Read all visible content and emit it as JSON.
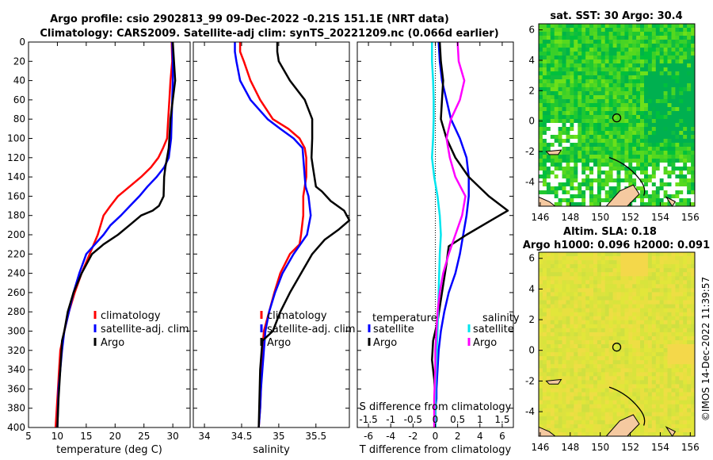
{
  "header": {
    "title1": "Argo profile: csio 2902813_99 09-Dec-2022 -0.21S 151.1E (NRT data)",
    "title2": "Climatology: CARS2009. Satellite-adj clim: synTS_20221209.nc (0.066d earlier)"
  },
  "colors": {
    "climatology": "#ff0000",
    "satellite": "#0000ff",
    "argo": "#000000",
    "temp_diff": "#00e5ee",
    "sal_diff": "#ff00ff"
  },
  "chart_data": [
    {
      "type": "line",
      "name": "temperature",
      "xlabel": "temperature (deg C)",
      "xlim": [
        5,
        33
      ],
      "ylim": [
        0,
        400
      ],
      "xticks": [
        5,
        10,
        15,
        20,
        25,
        30
      ],
      "xtick_labels": [
        "5",
        "10",
        "15",
        "20",
        "25",
        "30"
      ],
      "yticks": [
        0,
        20,
        40,
        60,
        80,
        100,
        120,
        140,
        160,
        180,
        200,
        220,
        240,
        260,
        280,
        300,
        320,
        340,
        360,
        380,
        400
      ],
      "ytick_labels": [
        "0",
        "20",
        "40",
        "60",
        "80",
        "100",
        "120",
        "140",
        "160",
        "180",
        "200",
        "220",
        "240",
        "260",
        "280",
        "300",
        "320",
        "340",
        "360",
        "380",
        "400"
      ],
      "legend": [
        "climatology",
        "satellite-adj. clim",
        "Argo"
      ],
      "series": [
        {
          "name": "climatology",
          "color": "#ff0000",
          "x": [
            29.8,
            29.9,
            29.6,
            29.4,
            29.2,
            29.0,
            28.3,
            27.5,
            26.2,
            24.5,
            22.5,
            20.5,
            19.2,
            18.0,
            17.0,
            15.6,
            14.2,
            13.0,
            12.0,
            11.2,
            10.5,
            10.3,
            10.1,
            9.9,
            9.7
          ],
          "y": [
            0,
            20,
            40,
            60,
            80,
            100,
            110,
            120,
            130,
            140,
            150,
            160,
            170,
            180,
            200,
            220,
            240,
            260,
            280,
            300,
            320,
            340,
            360,
            380,
            400
          ]
        },
        {
          "name": "satellite-adj. clim",
          "color": "#0000ff",
          "x": [
            29.9,
            30.0,
            30.0,
            29.9,
            29.8,
            29.7,
            29.3,
            28.5,
            27.2,
            25.6,
            24.2,
            22.6,
            21.0,
            19.2,
            18.0,
            16.5,
            15.0,
            13.8,
            12.8,
            12.0,
            11.2,
            10.8,
            10.5,
            10.2,
            10.0
          ],
          "y": [
            0,
            20,
            40,
            60,
            80,
            100,
            120,
            130,
            140,
            150,
            160,
            170,
            180,
            190,
            200,
            210,
            220,
            240,
            260,
            280,
            300,
            320,
            340,
            360,
            400
          ]
        },
        {
          "name": "Argo",
          "color": "#000000",
          "x": [
            30.0,
            30.2,
            30.4,
            30.0,
            29.6,
            29.4,
            29.3,
            29.0,
            28.7,
            28.5,
            28.4,
            27.6,
            26.5,
            24.5,
            22.5,
            20.5,
            18.0,
            16.0,
            14.2,
            12.8,
            11.8,
            11.2,
            10.8,
            10.5,
            10.2,
            10.0
          ],
          "y": [
            0,
            20,
            40,
            60,
            80,
            100,
            110,
            120,
            130,
            140,
            160,
            170,
            175,
            180,
            190,
            200,
            210,
            220,
            240,
            260,
            280,
            300,
            310,
            340,
            370,
            400
          ]
        }
      ]
    },
    {
      "type": "line",
      "name": "salinity",
      "xlabel": "salinity",
      "xlim": [
        33.85,
        35.95
      ],
      "ylim": [
        0,
        400
      ],
      "xticks": [
        34,
        34.5,
        35,
        35.5
      ],
      "xtick_labels": [
        "34",
        "34.5",
        "35",
        "35.5"
      ],
      "legend": [
        "climatology",
        "satellite-adj. clim",
        "Argo"
      ],
      "series": [
        {
          "name": "climatology",
          "color": "#ff0000",
          "x": [
            34.48,
            34.48,
            34.53,
            34.62,
            34.75,
            34.92,
            35.13,
            35.28,
            35.35,
            35.37,
            35.37,
            35.33,
            35.33,
            35.3,
            35.28,
            35.15,
            35.02,
            34.94,
            34.87,
            34.8,
            34.78,
            34.77,
            34.76,
            34.75,
            34.73
          ],
          "y": [
            0,
            10,
            20,
            40,
            60,
            80,
            90,
            100,
            110,
            120,
            140,
            160,
            180,
            200,
            210,
            220,
            240,
            260,
            280,
            300,
            320,
            340,
            360,
            380,
            400
          ]
        },
        {
          "name": "satellite-adj. clim",
          "color": "#0000ff",
          "x": [
            34.41,
            34.41,
            34.43,
            34.48,
            34.62,
            34.85,
            35.02,
            35.2,
            35.32,
            35.33,
            35.35,
            35.36,
            35.4,
            35.43,
            35.38,
            35.2,
            35.05,
            34.95,
            34.87,
            34.82,
            34.8,
            34.78,
            34.76,
            34.75,
            34.73
          ],
          "y": [
            0,
            10,
            20,
            40,
            60,
            80,
            90,
            100,
            110,
            120,
            140,
            150,
            160,
            180,
            200,
            220,
            240,
            260,
            280,
            300,
            320,
            340,
            360,
            380,
            400
          ]
        },
        {
          "name": "Argo",
          "color": "#000000",
          "x": [
            34.98,
            34.98,
            35.0,
            35.15,
            35.35,
            35.45,
            35.45,
            35.44,
            35.46,
            35.48,
            35.5,
            35.58,
            35.7,
            35.88,
            35.95,
            35.8,
            35.62,
            35.45,
            35.3,
            35.15,
            35.02,
            34.92,
            34.78,
            34.75,
            34.74,
            34.73
          ],
          "y": [
            0,
            10,
            20,
            40,
            60,
            80,
            100,
            120,
            130,
            140,
            150,
            155,
            165,
            175,
            185,
            195,
            205,
            220,
            240,
            260,
            280,
            300,
            310,
            340,
            370,
            400
          ]
        }
      ]
    },
    {
      "type": "line",
      "name": "difference",
      "xlabel": "T difference from climatology",
      "xlabel_top": "S difference from climatology",
      "xlim": [
        -7,
        7
      ],
      "ylim": [
        0,
        400
      ],
      "xticks": [
        -6,
        -4,
        -2,
        0,
        2,
        4,
        6
      ],
      "xtick_labels": [
        "-6",
        "-4",
        "-2",
        "0",
        "2",
        "4",
        "6"
      ],
      "sticks": [
        -6,
        -4,
        -2,
        0,
        2,
        4,
        6
      ],
      "stick_labels": [
        "-1.5",
        "-1",
        "-0.5",
        "0",
        "0.5",
        "1",
        "1.5"
      ],
      "legend_left_title": "temperature",
      "legend_right_title": "salinity",
      "legend_items": [
        "satellite",
        "Argo",
        "satellite",
        "Argo"
      ],
      "series": [
        {
          "name": "T satellite",
          "color": "#0000ff",
          "x": [
            0.3,
            0.4,
            0.6,
            1.0,
            1.4,
            2.2,
            2.8,
            3.0,
            3.0,
            2.8,
            2.5,
            2.2,
            1.8,
            1.2,
            0.8,
            0.5,
            0.3,
            0.2,
            0.1,
            0.1,
            0.0,
            0.0,
            0.0
          ],
          "y": [
            0,
            20,
            40,
            60,
            80,
            100,
            120,
            140,
            160,
            180,
            200,
            220,
            240,
            260,
            280,
            300,
            320,
            340,
            360,
            370,
            380,
            390,
            400
          ]
        },
        {
          "name": "T Argo",
          "color": "#000000",
          "x": [
            0.4,
            0.5,
            0.7,
            0.6,
            0.5,
            1.0,
            1.8,
            3.0,
            4.8,
            6.5,
            5.0,
            2.8,
            1.2,
            1.0,
            0.6,
            0.2,
            -0.2,
            -0.3,
            -0.1,
            0.0,
            0.0,
            0.0
          ],
          "y": [
            0,
            20,
            40,
            60,
            80,
            100,
            120,
            140,
            160,
            175,
            185,
            200,
            212,
            230,
            260,
            290,
            310,
            330,
            350,
            370,
            390,
            400
          ]
        },
        {
          "name": "S satellite",
          "color": "#00e5ee",
          "x": [
            -0.3,
            -0.3,
            -0.2,
            -0.15,
            -0.15,
            -0.2,
            -0.3,
            -0.1,
            0.2,
            0.4,
            0.5,
            0.4,
            0.3,
            0.2,
            0.1,
            0.0,
            0.0,
            0.0
          ],
          "y": [
            0,
            20,
            40,
            60,
            80,
            100,
            120,
            140,
            160,
            180,
            200,
            220,
            260,
            300,
            330,
            360,
            380,
            400
          ]
        },
        {
          "name": "S Argo",
          "color": "#ff00ff",
          "x": [
            2.0,
            2.1,
            2.6,
            2.2,
            1.4,
            1.0,
            1.3,
            1.8,
            2.7,
            2.4,
            1.8,
            1.2,
            0.7,
            0.4,
            0.2,
            0.1,
            0.0,
            0.0,
            -0.1,
            -0.1
          ],
          "y": [
            0,
            20,
            40,
            60,
            80,
            100,
            120,
            140,
            160,
            180,
            200,
            220,
            240,
            260,
            280,
            300,
            320,
            340,
            370,
            400
          ]
        }
      ]
    },
    {
      "type": "heatmap",
      "name": "sst_map",
      "title": "sat. SST: 30 Argo: 30.4",
      "xlim": [
        145.9,
        156.3
      ],
      "ylim": [
        -5.6,
        6.4
      ],
      "xticks": [
        146,
        148,
        150,
        152,
        154,
        156
      ],
      "xtick_labels": [
        "146",
        "148",
        "150",
        "152",
        "154",
        "156"
      ],
      "yticks": [
        -4,
        -2,
        0,
        2,
        4,
        6
      ],
      "ytick_labels": [
        "-4",
        "-2",
        "0",
        "2",
        "4",
        "6"
      ],
      "marker": {
        "lon": 151.1,
        "lat": 0.21
      }
    },
    {
      "type": "heatmap",
      "name": "sla_map",
      "title": "Altim. SLA: 0.18",
      "subtitle": "Argo h1000: 0.096 h2000: 0.091",
      "xlim": [
        145.9,
        156.3
      ],
      "ylim": [
        -5.6,
        6.4
      ],
      "xticks": [
        146,
        148,
        150,
        152,
        154,
        156
      ],
      "xtick_labels": [
        "146",
        "148",
        "150",
        "152",
        "154",
        "156"
      ],
      "yticks": [
        -4,
        -2,
        0,
        2,
        4,
        6
      ],
      "ytick_labels": [
        "-4",
        "-2",
        "0",
        "2",
        "4",
        "6"
      ],
      "marker": {
        "lon": 151.1,
        "lat": 0.21
      }
    }
  ],
  "footer": {
    "credit": "©IMOS 14-Dec-2022 11:39:57"
  }
}
